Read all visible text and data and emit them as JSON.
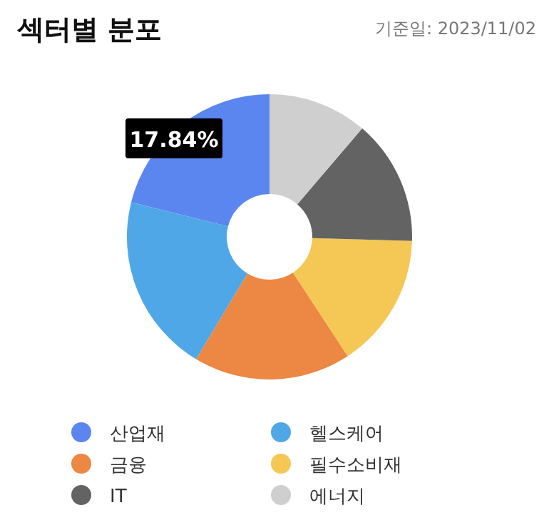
{
  "chart_data": {
    "type": "donut",
    "title": "섹터별 분포",
    "subtitle": "기준일: 2023/11/02",
    "categories": [
      "산업재",
      "헬스케어",
      "금융",
      "필수소비재",
      "IT",
      "에너지"
    ],
    "values": [
      21.1,
      20.3,
      17.84,
      15.3,
      14.2,
      11.26
    ],
    "colors": [
      "#5b86f0",
      "#4fa7e8",
      "#ec8744",
      "#f5c755",
      "#636363",
      "#cfcfcf"
    ],
    "annotations": [
      "17.84%"
    ],
    "legend": "bottom"
  }
}
